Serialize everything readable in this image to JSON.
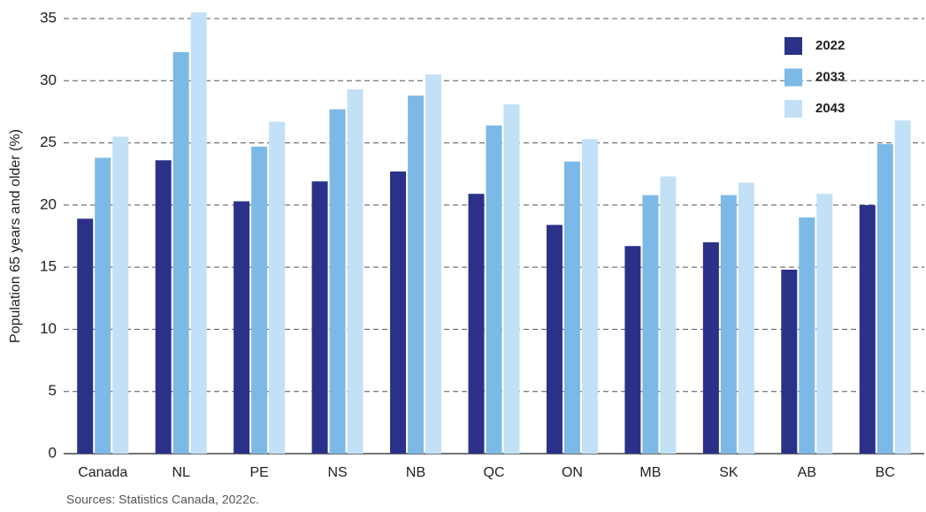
{
  "chart_data": {
    "type": "bar",
    "y_label": "Population 65 years and older (%)",
    "source": "Sources: Statistics Canada, 2022c.",
    "categories": [
      "Canada",
      "NL",
      "PE",
      "NS",
      "NB",
      "QC",
      "ON",
      "MB",
      "SK",
      "AB",
      "BC"
    ],
    "series": [
      {
        "name": "2022",
        "color": "#2b3188",
        "values": [
          18.9,
          23.6,
          20.3,
          21.9,
          22.7,
          20.9,
          18.4,
          16.7,
          17.0,
          14.8,
          20.0
        ]
      },
      {
        "name": "2033",
        "color": "#7cb9e6",
        "values": [
          23.8,
          32.3,
          24.7,
          27.7,
          28.8,
          26.4,
          23.5,
          20.8,
          20.8,
          19.0,
          24.9
        ]
      },
      {
        "name": "2043",
        "color": "#c2e1f7",
        "values": [
          25.5,
          35.5,
          26.7,
          29.3,
          30.5,
          28.1,
          25.3,
          22.3,
          21.8,
          20.9,
          26.8
        ]
      }
    ],
    "ylim": [
      0,
      35
    ],
    "yticks": [
      0,
      5,
      10,
      15,
      20,
      25,
      30,
      35
    ],
    "grid": true,
    "legend": "top-right"
  }
}
